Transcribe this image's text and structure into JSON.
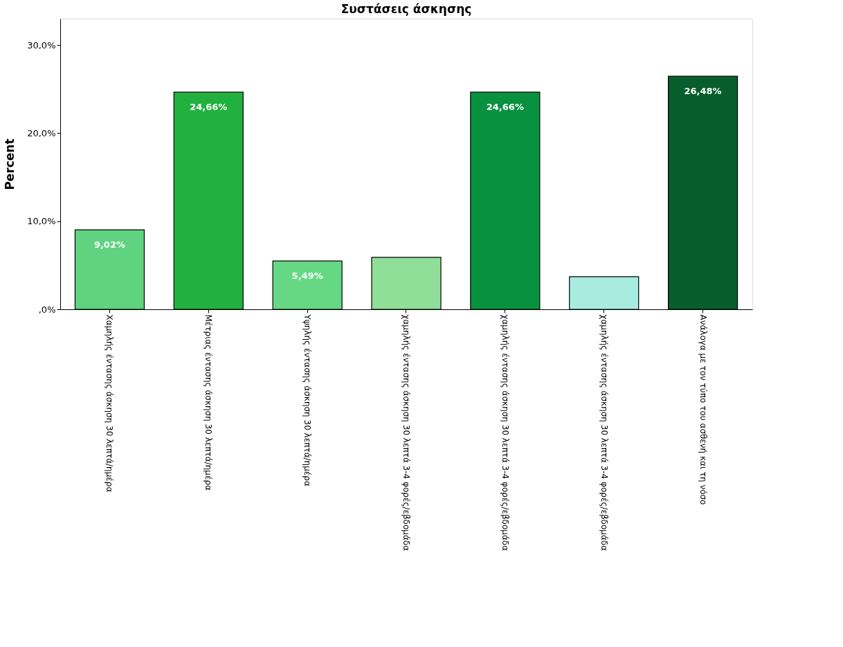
{
  "chart_data": {
    "type": "bar",
    "title": "Συστάσεις άσκησης",
    "ylabel": "Percent",
    "categories": [
      "Χαμηλής έντασης άσκηση 30 λεπτά/ημέρα",
      "Μέτριας έντασης άσκηση 30 λεπτά/ημέρα",
      "Υψηλής έντασης άσκηση 30  λεπτά/ημέρα",
      "χαμηλής έντασης άσκηση 30 λεπτά 3-4 φορές/εβδομάδα",
      "χαμηλής έντασης άσκηση 30 λεπτά 3-4 φορές/εβδομάδα",
      "χαμηλής έντασης άσκηση 30 λεπτά 3-4 φορές/εβδομάδα",
      "Ανάλογα με τον τύπο του ασθενή και τη νόσο"
    ],
    "values": [
      9.02,
      24.66,
      5.49,
      5.9,
      24.66,
      3.7,
      26.48
    ],
    "value_labels": [
      "9,02%",
      "24,66%",
      "5,49%",
      null,
      "24,66%",
      null,
      "26,48%"
    ],
    "colors": [
      "#5fd37f",
      "#22b13f",
      "#66d883",
      "#8fdf98",
      "#08913f",
      "#a8ece0",
      "#075e2c"
    ],
    "ylim": [
      0,
      33
    ],
    "yticks": [
      {
        "value": 0,
        "label": ",0%"
      },
      {
        "value": 10,
        "label": "10,0%"
      },
      {
        "value": 20,
        "label": "20,0%"
      },
      {
        "value": 30,
        "label": "30,0%"
      }
    ],
    "grid": false
  }
}
